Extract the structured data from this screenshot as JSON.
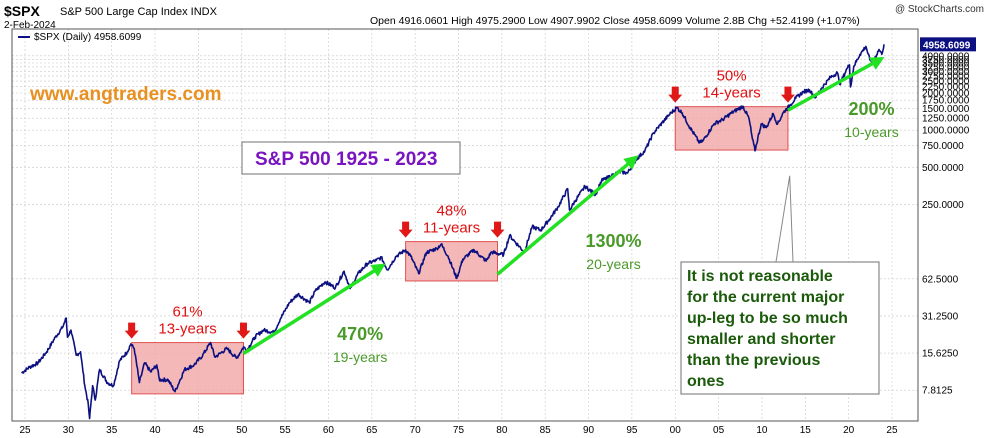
{
  "header": {
    "symbol": "$SPX",
    "name": "S&P 500 Large Cap Index  INDX",
    "date": "2-Feb-2024",
    "quote": "Open 4916.0601  High 4975.2900  Low 4907.9902  Close 4958.6099  Volume 2.8B  Chg +52.4199 (+1.07%)",
    "copyright": "@ StockCharts.com"
  },
  "watermark": "www.angtraders.com",
  "colors": {
    "price_line": "#0c1080",
    "box_fill": "#f1a6a8",
    "box_stroke": "#e05050",
    "red_text": "#e01010",
    "green_text": "#4a9a2a",
    "green_arrow": "#22e022",
    "watermark": "#e89020",
    "title": "#7a14c0",
    "note_text": "#1a5a0a",
    "grid": "#c8c8c8",
    "price_tag": "#0c1080"
  },
  "chart_data": {
    "type": "line",
    "title": "S&P 500  1925 - 2023",
    "legend": "$SPX (Daily) 4958.6099",
    "y_scale": "log",
    "ylim": [
      4.4,
      6600
    ],
    "xlim": [
      1923.5,
      2028
    ],
    "last_value_label": "4958.6099",
    "y_ticks": [
      {
        "value": 7.8125,
        "label": "7.8125"
      },
      {
        "value": 15.625,
        "label": "15.6250"
      },
      {
        "value": 31.25,
        "label": "31.2500"
      },
      {
        "value": 62.5,
        "label": "62.5000"
      },
      {
        "value": 250,
        "label": "250.0000"
      },
      {
        "value": 500,
        "label": "500.0000"
      },
      {
        "value": 750,
        "label": "750.0000"
      },
      {
        "value": 1000,
        "label": "1000.0000"
      },
      {
        "value": 1250,
        "label": "1250.0000"
      },
      {
        "value": 1500,
        "label": "1500.0000"
      },
      {
        "value": 1750,
        "label": "1750.0000"
      },
      {
        "value": 2000,
        "label": "2000.0000"
      },
      {
        "value": 2250,
        "label": "2250.0000"
      },
      {
        "value": 2500,
        "label": "2500.0000"
      },
      {
        "value": 2750,
        "label": "2750.0000"
      },
      {
        "value": 3000,
        "label": "3000.0000"
      },
      {
        "value": 3250,
        "label": "3250.0000"
      },
      {
        "value": 3500,
        "label": "3500.0000"
      },
      {
        "value": 3750,
        "label": "3750.0000"
      },
      {
        "value": 4000,
        "label": "4000.0000"
      }
    ],
    "x_ticks": [
      {
        "year": 1925,
        "label": "25"
      },
      {
        "year": 1930,
        "label": "30"
      },
      {
        "year": 1935,
        "label": "35"
      },
      {
        "year": 1940,
        "label": "40"
      },
      {
        "year": 1945,
        "label": "45"
      },
      {
        "year": 1950,
        "label": "50"
      },
      {
        "year": 1955,
        "label": "55"
      },
      {
        "year": 1960,
        "label": "60"
      },
      {
        "year": 1965,
        "label": "65"
      },
      {
        "year": 1970,
        "label": "70"
      },
      {
        "year": 1975,
        "label": "75"
      },
      {
        "year": 1980,
        "label": "80"
      },
      {
        "year": 1985,
        "label": "85"
      },
      {
        "year": 1990,
        "label": "90"
      },
      {
        "year": 1995,
        "label": "95"
      },
      {
        "year": 2000,
        "label": "00"
      },
      {
        "year": 2005,
        "label": "05"
      },
      {
        "year": 2010,
        "label": "10"
      },
      {
        "year": 2015,
        "label": "15"
      },
      {
        "year": 2020,
        "label": "20"
      },
      {
        "year": 2025,
        "label": "25"
      }
    ],
    "series": [
      {
        "name": "$SPX (Daily)",
        "points": [
          [
            1924.6,
            10.8
          ],
          [
            1925.5,
            12
          ],
          [
            1926.5,
            13
          ],
          [
            1927.5,
            16
          ],
          [
            1928.5,
            21
          ],
          [
            1929.3,
            25
          ],
          [
            1929.75,
            30
          ],
          [
            1929.9,
            21
          ],
          [
            1930.3,
            24
          ],
          [
            1930.9,
            15
          ],
          [
            1931.4,
            16
          ],
          [
            1931.9,
            8.5
          ],
          [
            1932.3,
            6.0
          ],
          [
            1932.45,
            4.6
          ],
          [
            1932.8,
            8.5
          ],
          [
            1933.1,
            6.5
          ],
          [
            1933.6,
            11.5
          ],
          [
            1934.5,
            9.0
          ],
          [
            1935.2,
            8.5
          ],
          [
            1935.9,
            13.5
          ],
          [
            1936.8,
            16
          ],
          [
            1937.2,
            18.5
          ],
          [
            1937.6,
            17
          ],
          [
            1938.2,
            9.0
          ],
          [
            1938.8,
            13
          ],
          [
            1939.5,
            11
          ],
          [
            1940.2,
            12.5
          ],
          [
            1940.5,
            9.5
          ],
          [
            1941.5,
            9.5
          ],
          [
            1942.3,
            7.6
          ],
          [
            1943.4,
            11.5
          ],
          [
            1944.5,
            12.5
          ],
          [
            1945.5,
            15
          ],
          [
            1946.4,
            19
          ],
          [
            1946.9,
            14.5
          ],
          [
            1947.5,
            15.5
          ],
          [
            1948.3,
            17
          ],
          [
            1949.4,
            14.2
          ],
          [
            1950.2,
            17.5
          ],
          [
            1950.6,
            16.5
          ],
          [
            1951.5,
            21
          ],
          [
            1952.5,
            24
          ],
          [
            1953.7,
            23
          ],
          [
            1954.5,
            30
          ],
          [
            1955.5,
            40
          ],
          [
            1956.5,
            47
          ],
          [
            1957.8,
            40
          ],
          [
            1958.5,
            50
          ],
          [
            1959.6,
            59
          ],
          [
            1960.8,
            53
          ],
          [
            1961.8,
            72
          ],
          [
            1962.5,
            52
          ],
          [
            1963.5,
            70
          ],
          [
            1964.5,
            83
          ],
          [
            1965.5,
            88
          ],
          [
            1966.1,
            93
          ],
          [
            1966.8,
            74
          ],
          [
            1967.8,
            95
          ],
          [
            1968.9,
            107
          ],
          [
            1969.5,
            95
          ],
          [
            1970.4,
            69
          ],
          [
            1971.3,
            102
          ],
          [
            1972.5,
            110
          ],
          [
            1973.0,
            119
          ],
          [
            1973.8,
            95
          ],
          [
            1974.8,
            63
          ],
          [
            1975.5,
            90
          ],
          [
            1976.8,
            107
          ],
          [
            1977.5,
            96
          ],
          [
            1978.2,
            87
          ],
          [
            1978.8,
            103
          ],
          [
            1979.5,
            100
          ],
          [
            1980.2,
            98
          ],
          [
            1980.9,
            140
          ],
          [
            1981.5,
            125
          ],
          [
            1982.6,
            103
          ],
          [
            1983.5,
            165
          ],
          [
            1984.5,
            155
          ],
          [
            1985.5,
            190
          ],
          [
            1986.5,
            240
          ],
          [
            1987.6,
            335
          ],
          [
            1987.8,
            225
          ],
          [
            1988.5,
            270
          ],
          [
            1989.6,
            350
          ],
          [
            1990.8,
            300
          ],
          [
            1991.5,
            390
          ],
          [
            1992.5,
            420
          ],
          [
            1993.5,
            460
          ],
          [
            1994.5,
            450
          ],
          [
            1995.5,
            580
          ],
          [
            1996.5,
            680
          ],
          [
            1997.5,
            950
          ],
          [
            1998.5,
            1150
          ],
          [
            1999.5,
            1380
          ],
          [
            2000.2,
            1520
          ],
          [
            2000.8,
            1380
          ],
          [
            2001.7,
            1050
          ],
          [
            2002.8,
            790
          ],
          [
            2003.2,
            820
          ],
          [
            2004.5,
            1130
          ],
          [
            2005.5,
            1220
          ],
          [
            2006.5,
            1380
          ],
          [
            2007.8,
            1560
          ],
          [
            2008.5,
            1250
          ],
          [
            2008.9,
            850
          ],
          [
            2009.2,
            680
          ],
          [
            2009.9,
            1120
          ],
          [
            2010.5,
            1050
          ],
          [
            2011.3,
            1360
          ],
          [
            2011.8,
            1120
          ],
          [
            2012.5,
            1400
          ],
          [
            2013.2,
            1580
          ],
          [
            2013.9,
            1820
          ],
          [
            2014.8,
            2050
          ],
          [
            2015.5,
            2120
          ],
          [
            2016.1,
            1830
          ],
          [
            2016.9,
            2200
          ],
          [
            2017.9,
            2680
          ],
          [
            2018.7,
            2920
          ],
          [
            2018.98,
            2350
          ],
          [
            2019.8,
            3150
          ],
          [
            2020.1,
            3380
          ],
          [
            2020.22,
            2240
          ],
          [
            2020.6,
            3300
          ],
          [
            2021.3,
            4100
          ],
          [
            2021.99,
            4770
          ],
          [
            2022.45,
            3700
          ],
          [
            2022.8,
            3580
          ],
          [
            2023.5,
            4500
          ],
          [
            2023.82,
            4120
          ],
          [
            2024.08,
            4958.6099
          ]
        ]
      }
    ],
    "consolidation_boxes": [
      {
        "x0": 1937.3,
        "x1": 1950.2,
        "y_low": 7.3,
        "y_high": 19,
        "label_pct": "61%",
        "label_dur": "13-years"
      },
      {
        "x0": 1968.9,
        "x1": 1979.5,
        "y_low": 60,
        "y_high": 125,
        "label_pct": "48%",
        "label_dur": "11-years"
      },
      {
        "x0": 2000.0,
        "x1": 2013.0,
        "y_low": 690,
        "y_high": 1550,
        "label_pct": "50%",
        "label_dur": "14-years"
      }
    ],
    "up_legs": [
      {
        "x0": 1950.2,
        "x1": 1966.0,
        "y0": 15.5,
        "y1": 78,
        "label_pct": "470%",
        "label_dur": "19-years"
      },
      {
        "x0": 1979.5,
        "x1": 1995.2,
        "y0": 68,
        "y1": 580,
        "label_pct": "1300%",
        "label_dur": "20-years"
      },
      {
        "x0": 2013.0,
        "x1": 2023.5,
        "y0": 1450,
        "y1": 3700,
        "label_pct": "200%",
        "label_dur": "10-years"
      }
    ],
    "red_markers": [
      1937.3,
      1950.2,
      1968.9,
      1979.5,
      2000.0,
      2013.0
    ],
    "note": {
      "lines": [
        "It is not reasonable",
        "for the current major",
        "up-leg to be so much",
        "smaller and shorter",
        "than the previous",
        "ones"
      ]
    }
  }
}
